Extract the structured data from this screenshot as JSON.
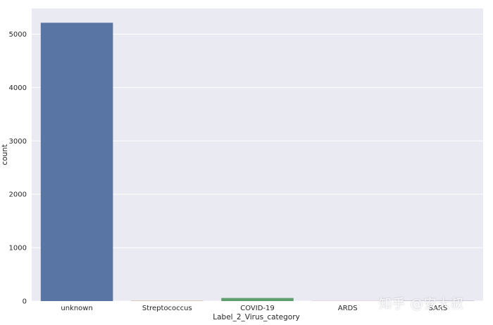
{
  "chart_data": {
    "type": "bar",
    "xlabel": "Label_2_Virus_category",
    "ylabel": "count",
    "categories": [
      "unknown",
      "Streptococcus",
      "COVID-19",
      "ARDS",
      "SARS"
    ],
    "values": [
      5212,
      5,
      58,
      2,
      4
    ],
    "bar_colors": [
      "#5975a4",
      "#cc8963",
      "#5f9e6e",
      "#b55d60",
      "#857aab"
    ],
    "ylim": [
      0,
      5480
    ],
    "yticks": [
      0,
      1000,
      2000,
      3000,
      4000,
      5000
    ],
    "grid": true,
    "background": "#eaeaf2"
  },
  "watermark": "知乎 @安大叔"
}
